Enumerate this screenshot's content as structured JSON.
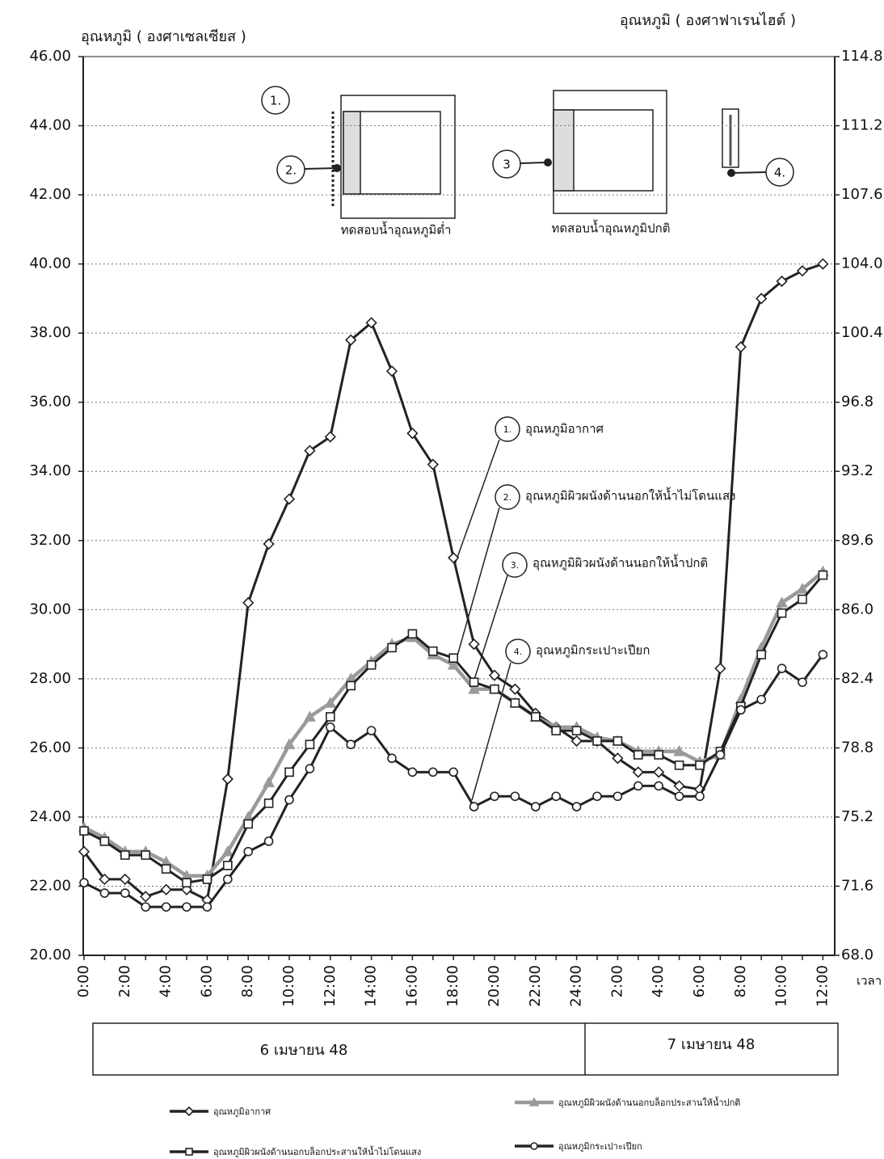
{
  "chart_data": {
    "type": "line",
    "ylabel": "อุณหภูมิ ( องศาเซลเซียส )",
    "y2label": "อุณหภูมิ ( องศาฟาเรนไฮต์ )",
    "xlabel": "เวลา",
    "categories": [
      "0:00",
      null,
      "2:00",
      null,
      "4:00",
      null,
      "6:00",
      null,
      "8:00",
      null,
      "10:00",
      null,
      "12:00",
      null,
      "14:00",
      null,
      "16:00",
      null,
      "18:00",
      null,
      "20:00",
      null,
      "22:00",
      null,
      "24:00",
      null,
      "2:00",
      null,
      "4:00",
      null,
      "6:00",
      null,
      "8:00",
      null,
      "10:00",
      null,
      "12:00"
    ],
    "date_labels": [
      "6 เมษายน 48",
      "7 เมษายน 48"
    ],
    "ylim": [
      20,
      46
    ],
    "yticks": [
      {
        "value": 20,
        "label": "20.00"
      },
      {
        "value": 22,
        "label": "22.00"
      },
      {
        "value": 24,
        "label": "24.00"
      },
      {
        "value": 26,
        "label": "26.00"
      },
      {
        "value": 28,
        "label": "28.00"
      },
      {
        "value": 30,
        "label": "30.00"
      },
      {
        "value": 32,
        "label": "32.00"
      },
      {
        "value": 34,
        "label": "34.00"
      },
      {
        "value": 36,
        "label": "36.00"
      },
      {
        "value": 38,
        "label": "38.00"
      },
      {
        "value": 40,
        "label": "40.00"
      },
      {
        "value": 42,
        "label": "42.00"
      },
      {
        "value": 44,
        "label": "44.00"
      },
      {
        "value": 46,
        "label": "46.00"
      }
    ],
    "y2lim": [
      68,
      114.8
    ],
    "y2ticks": [
      {
        "value": 68,
        "label": "68.0"
      },
      71.6,
      75.2,
      78.8,
      82.4,
      {
        "value": 86,
        "label": "86.0"
      },
      89.6,
      93.2,
      96.8,
      100.4,
      {
        "value": 104,
        "label": "104.0"
      },
      107.6,
      111.2,
      114.8
    ],
    "grid": true,
    "series": [
      {
        "name": "อุณหภูมิอากาศ",
        "color": "#222222",
        "marker": "diamond",
        "values": [
          23.0,
          22.2,
          22.2,
          21.7,
          21.9,
          21.9,
          21.6,
          25.1,
          30.2,
          31.9,
          33.2,
          34.6,
          35.0,
          37.8,
          38.3,
          36.9,
          35.1,
          34.2,
          31.5,
          29.0,
          28.1,
          27.7,
          27.0,
          26.6,
          26.2,
          26.2,
          25.7,
          25.3,
          25.3,
          24.9,
          24.8,
          28.3,
          37.6,
          39.0,
          39.5,
          39.8,
          40.0
        ]
      },
      {
        "name": "อุณหภูมิผิวผนังด้านนอกบล็อกประสานให้น้ำปกติ",
        "color": "#9a9a9a",
        "marker": "triangle",
        "values": [
          23.7,
          23.4,
          23.0,
          23.0,
          22.7,
          22.3,
          22.3,
          23.0,
          24.0,
          25.0,
          26.1,
          26.9,
          27.3,
          28.0,
          28.5,
          29.0,
          29.2,
          28.7,
          28.4,
          27.7,
          27.7,
          27.3,
          26.9,
          26.6,
          26.6,
          26.3,
          26.2,
          25.9,
          25.9,
          25.9,
          25.6,
          25.8,
          27.4,
          28.9,
          30.2,
          30.6,
          31.1
        ]
      },
      {
        "name": "อุณหภูมิผิวผนังด้านนอกบล็อกประสานให้น้ำไม่โดนแสง",
        "color": "#222222",
        "marker": "square",
        "values": [
          23.6,
          23.3,
          22.9,
          22.9,
          22.5,
          22.1,
          22.2,
          22.6,
          23.8,
          24.4,
          25.3,
          26.1,
          26.9,
          27.8,
          28.4,
          28.9,
          29.3,
          28.8,
          28.6,
          27.9,
          27.7,
          27.3,
          26.9,
          26.5,
          26.5,
          26.2,
          26.2,
          25.8,
          25.8,
          25.5,
          25.5,
          25.9,
          27.2,
          28.7,
          29.9,
          30.3,
          31.0
        ]
      },
      {
        "name": "อุณหภูมิกระเปาะเปียก",
        "color": "#222222",
        "marker": "circle",
        "values": [
          22.1,
          21.8,
          21.8,
          21.4,
          21.4,
          21.4,
          21.4,
          22.2,
          23.0,
          23.3,
          24.5,
          25.4,
          26.6,
          26.1,
          26.5,
          25.7,
          25.3,
          25.3,
          25.3,
          24.3,
          24.6,
          24.6,
          24.3,
          24.6,
          24.3,
          24.6,
          24.6,
          24.9,
          24.9,
          24.6,
          24.6,
          25.8,
          27.1,
          27.4,
          28.3,
          27.9,
          28.7
        ]
      }
    ],
    "diagram": {
      "markers": [
        "1.",
        "2.",
        "3",
        "4."
      ],
      "captions": [
        "ทดสอบน้ำอุณหภูมิต่ำ",
        "ทดสอบน้ำอุณหภูมิปกติ"
      ]
    },
    "callouts": [
      {
        "number": "1.",
        "text": "อุณหภูมิอากาศ"
      },
      {
        "number": "2.",
        "text": "อุณหภูมิผิวผนังด้านนอกให้น้ำไม่โดนแสง"
      },
      {
        "number": "3.",
        "text": "อุณหภูมิผิวผนังด้านนอกให้น้ำปกติ"
      },
      {
        "number": "4.",
        "text": "อุณหภูมิกระเปาะเปียก"
      }
    ]
  }
}
